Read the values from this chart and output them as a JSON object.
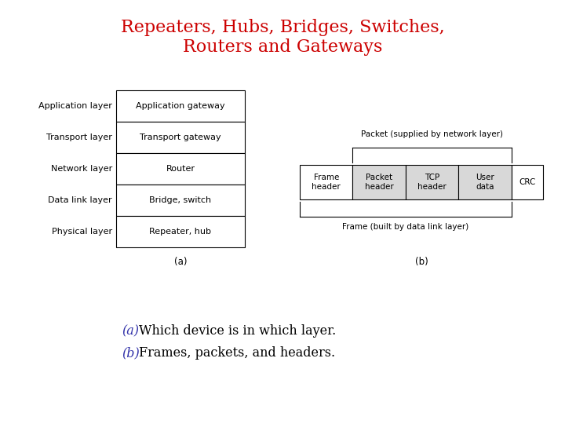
{
  "title_line1": "Repeaters, Hubs, Bridges, Switches,",
  "title_line2": "Routers and Gateways",
  "title_color": "#cc0000",
  "title_fontsize": 16,
  "bg_color": "#ffffff",
  "layers": [
    "Application layer",
    "Transport layer",
    "Network layer",
    "Data link layer",
    "Physical layer"
  ],
  "devices": [
    "Application gateway",
    "Transport gateway",
    "Router",
    "Bridge, switch",
    "Repeater, hub"
  ],
  "label_a": "(a)",
  "label_b": "(b)",
  "caption_a_prefix": "(a)",
  "caption_a_text": "Which device is in which layer.",
  "caption_b_prefix": "(b)",
  "caption_b_text": "Frames, packets, and headers.",
  "caption_color": "#3333aa",
  "caption_fontsize": 11.5,
  "frame_cells": [
    "Frame\nheader",
    "Packet\nheader",
    "TCP\nheader",
    "User\ndata",
    "CRC"
  ],
  "cell_colors": [
    "white",
    "#d8d8d8",
    "#d8d8d8",
    "#d8d8d8",
    "white"
  ],
  "frame_widths_rel": [
    1.0,
    1.0,
    1.0,
    1.0,
    0.6
  ],
  "packet_label": "Packet (supplied by network layer)",
  "frame_label": "Frame (built by data link layer)",
  "table_layer_fontsize": 8,
  "table_device_fontsize": 8,
  "diagram_fontsize": 7.5,
  "label_fontsize": 8.5
}
